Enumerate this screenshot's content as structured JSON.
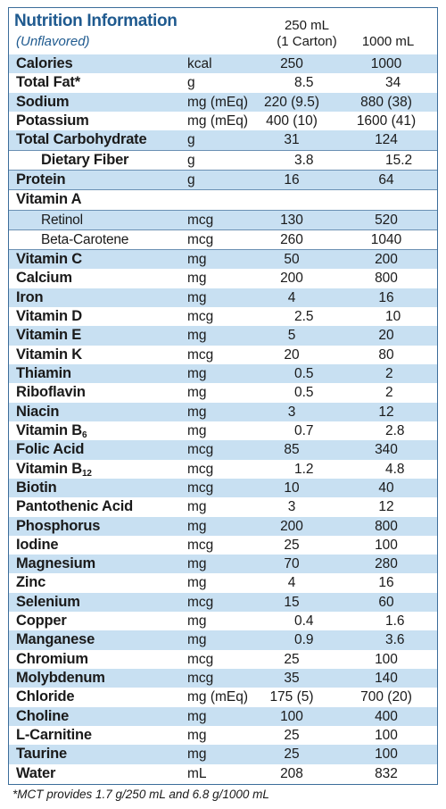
{
  "header": {
    "title": "Nutrition Information",
    "subtitle": "(Unflavored)",
    "col1_line1": "250 mL",
    "col1_line2": "(1 Carton)",
    "col2": "1000 mL"
  },
  "rows": [
    {
      "name": "Calories",
      "sub": "",
      "unit": "kcal",
      "v1": "250",
      "v2": "1000"
    },
    {
      "name": "Total Fat*",
      "sub": "",
      "unit": "g",
      "v1": "8.5",
      "v2": "34"
    },
    {
      "name": "Sodium",
      "sub": "",
      "unit": "mg (mEq)",
      "v1": "220 (9.5)",
      "v2": "880 (38)"
    },
    {
      "name": "Potassium",
      "sub": "",
      "unit": "mg (mEq)",
      "v1": "400 (10)",
      "v2": "1600 (41)"
    },
    {
      "name": "Total Carbohydrate",
      "sub": "",
      "unit": "g",
      "v1": "31",
      "v2": "124"
    },
    {
      "name": "Dietary Fiber",
      "sub": "",
      "unit": "g",
      "v1": "3.8",
      "v2": "15.2"
    },
    {
      "name": "Protein",
      "sub": "",
      "unit": "g",
      "v1": "16",
      "v2": "64"
    },
    {
      "name": "Vitamin A",
      "sub": "",
      "unit": "",
      "v1": "",
      "v2": ""
    },
    {
      "name": "Retinol",
      "sub": "",
      "unit": "mcg",
      "v1": "130",
      "v2": "520"
    },
    {
      "name": "Beta-Carotene",
      "sub": "",
      "unit": "mcg",
      "v1": "260",
      "v2": "1040"
    },
    {
      "name": "Vitamin C",
      "sub": "",
      "unit": "mg",
      "v1": "50",
      "v2": "200"
    },
    {
      "name": "Calcium",
      "sub": "",
      "unit": "mg",
      "v1": "200",
      "v2": "800"
    },
    {
      "name": "Iron",
      "sub": "",
      "unit": "mg",
      "v1": "4",
      "v2": "16"
    },
    {
      "name": "Vitamin D",
      "sub": "",
      "unit": "mcg",
      "v1": "2.5",
      "v2": "10"
    },
    {
      "name": "Vitamin E",
      "sub": "",
      "unit": "mg",
      "v1": "5",
      "v2": "20"
    },
    {
      "name": "Vitamin K",
      "sub": "",
      "unit": "mcg",
      "v1": "20",
      "v2": "80"
    },
    {
      "name": "Thiamin",
      "sub": "",
      "unit": "mg",
      "v1": "0.5",
      "v2": "2"
    },
    {
      "name": "Riboflavin",
      "sub": "",
      "unit": "mg",
      "v1": "0.5",
      "v2": "2"
    },
    {
      "name": "Niacin",
      "sub": "",
      "unit": "mg",
      "v1": "3",
      "v2": "12"
    },
    {
      "name": "Vitamin B",
      "sub": "6",
      "unit": "mg",
      "v1": "0.7",
      "v2": "2.8"
    },
    {
      "name": "Folic Acid",
      "sub": "",
      "unit": "mcg",
      "v1": "85",
      "v2": "340"
    },
    {
      "name": "Vitamin B",
      "sub": "12",
      "unit": "mcg",
      "v1": "1.2",
      "v2": "4.8"
    },
    {
      "name": "Biotin",
      "sub": "",
      "unit": "mcg",
      "v1": "10",
      "v2": "40"
    },
    {
      "name": "Pantothenic Acid",
      "sub": "",
      "unit": "mg",
      "v1": "3",
      "v2": "12"
    },
    {
      "name": "Phosphorus",
      "sub": "",
      "unit": "mg",
      "v1": "200",
      "v2": "800"
    },
    {
      "name": "Iodine",
      "sub": "",
      "unit": "mcg",
      "v1": "25",
      "v2": "100"
    },
    {
      "name": "Magnesium",
      "sub": "",
      "unit": "mg",
      "v1": "70",
      "v2": "280"
    },
    {
      "name": "Zinc",
      "sub": "",
      "unit": "mg",
      "v1": "4",
      "v2": "16"
    },
    {
      "name": "Selenium",
      "sub": "",
      "unit": "mcg",
      "v1": "15",
      "v2": "60"
    },
    {
      "name": "Copper",
      "sub": "",
      "unit": "mg",
      "v1": "0.4",
      "v2": "1.6"
    },
    {
      "name": "Manganese",
      "sub": "",
      "unit": "mg",
      "v1": "0.9",
      "v2": "3.6"
    },
    {
      "name": "Chromium",
      "sub": "",
      "unit": "mcg",
      "v1": "25",
      "v2": "100"
    },
    {
      "name": "Molybdenum",
      "sub": "",
      "unit": "mcg",
      "v1": "35",
      "v2": "140"
    },
    {
      "name": "Chloride",
      "sub": "",
      "unit": "mg (mEq)",
      "v1": "175 (5)",
      "v2": "700 (20)"
    },
    {
      "name": "Choline",
      "sub": "",
      "unit": "mg",
      "v1": "100",
      "v2": "400"
    },
    {
      "name": "L-Carnitine",
      "sub": "",
      "unit": "mg",
      "v1": "25",
      "v2": "100"
    },
    {
      "name": "Taurine",
      "sub": "",
      "unit": "mg",
      "v1": "25",
      "v2": "100"
    },
    {
      "name": "Water",
      "sub": "",
      "unit": "mL",
      "v1": "208",
      "v2": "832"
    }
  ],
  "footnote": "*MCT provides 1.7 g/250 mL and 6.8 g/1000 mL",
  "colors": {
    "accent": "#1f5a8f",
    "shade": "#c8e0f2",
    "border": "#3c6d9a"
  }
}
